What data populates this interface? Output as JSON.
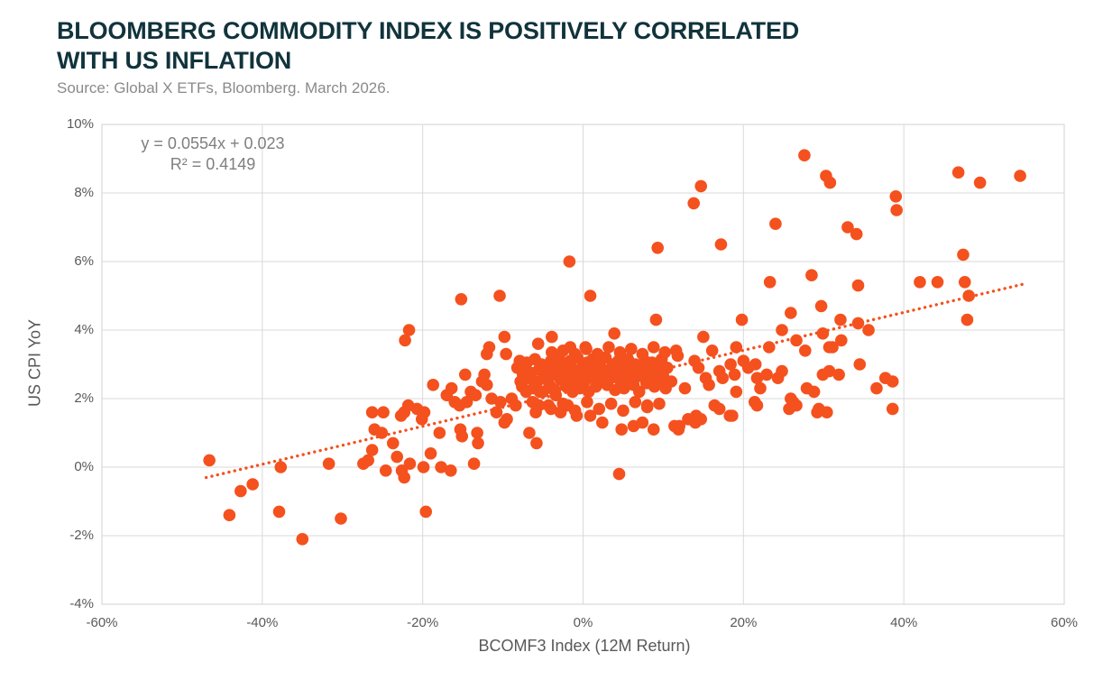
{
  "header": {
    "title_line1": "BLOOMBERG COMMODITY INDEX IS POSITIVELY CORRELATED",
    "title_line2": "WITH US INFLATION",
    "source": "Source: Global X ETFs, Bloomberg. March 2026."
  },
  "colors": {
    "title": "#11333C",
    "source_text": "#8a8a8a",
    "axis_text": "#595959",
    "gridline": "#D9D9D9",
    "marker": "#F4511E"
  },
  "chart_data": {
    "type": "scatter",
    "title": "Bloomberg Commodity Index is positively correlated with US inflation",
    "xlabel": "BCOMF3 Index (12M Return)",
    "ylabel": "US CPI YoY",
    "xlim": [
      -60,
      60
    ],
    "ylim": [
      -4,
      10
    ],
    "x_ticks": [
      -60,
      -40,
      -20,
      0,
      20,
      40,
      60
    ],
    "y_ticks": [
      -4,
      -2,
      0,
      2,
      4,
      6,
      8,
      10
    ],
    "tick_suffix": "%",
    "grid": true,
    "legend": "none",
    "annotation": {
      "line1": "y = 0.0554x + 0.023",
      "line2": "R² = 0.4149"
    },
    "trendline": {
      "slope": 0.0554,
      "intercept_pct": 2.3,
      "x_start": -47,
      "x_end": 55,
      "style": "dotted"
    },
    "points": [
      [
        -46.6,
        0.2
      ],
      [
        -44.1,
        -1.4
      ],
      [
        -42.7,
        -0.7
      ],
      [
        -41.2,
        -0.5
      ],
      [
        -37.9,
        -1.3
      ],
      [
        -37.7,
        0.0
      ],
      [
        -35.0,
        -2.1
      ],
      [
        -31.7,
        0.1
      ],
      [
        -30.2,
        -1.5
      ],
      [
        -27.4,
        0.1
      ],
      [
        -26.8,
        0.2
      ],
      [
        -26.3,
        1.6
      ],
      [
        -26.3,
        0.5
      ],
      [
        -26.0,
        1.1
      ],
      [
        -25.1,
        1.0
      ],
      [
        -24.9,
        1.6
      ],
      [
        -24.6,
        -0.1
      ],
      [
        -23.7,
        0.7
      ],
      [
        -23.2,
        0.3
      ],
      [
        -22.7,
        1.5
      ],
      [
        -22.3,
        1.6
      ],
      [
        -22.6,
        -0.1
      ],
      [
        -22.3,
        -0.3
      ],
      [
        -21.8,
        1.8
      ],
      [
        -21.6,
        0.1
      ],
      [
        -20.7,
        1.7
      ],
      [
        -20.1,
        1.4
      ],
      [
        -19.9,
        0.0
      ],
      [
        -19.8,
        1.6
      ],
      [
        -19.6,
        -1.3
      ],
      [
        -19.0,
        0.4
      ],
      [
        -18.7,
        2.4
      ],
      [
        -17.9,
        1.0
      ],
      [
        -17.7,
        0.0
      ],
      [
        -17.0,
        2.1
      ],
      [
        -16.5,
        -0.1
      ],
      [
        -16.4,
        2.3
      ],
      [
        -16.0,
        1.9
      ],
      [
        -15.4,
        1.8
      ],
      [
        -15.3,
        1.1
      ],
      [
        -15.1,
        0.9
      ],
      [
        -14.7,
        2.7
      ],
      [
        -14.5,
        1.9
      ],
      [
        -14.0,
        2.2
      ],
      [
        -13.6,
        0.1
      ],
      [
        -13.4,
        2.1
      ],
      [
        -13.2,
        1.0
      ],
      [
        -13.1,
        0.7
      ],
      [
        -12.6,
        2.5
      ],
      [
        -12.3,
        2.7
      ],
      [
        -12.0,
        2.4
      ],
      [
        -11.4,
        2.0
      ],
      [
        -10.8,
        1.6
      ],
      [
        -10.3,
        1.9
      ],
      [
        -9.8,
        1.3
      ],
      [
        -9.5,
        1.4
      ],
      [
        -8.9,
        2.0
      ],
      [
        -8.4,
        1.8
      ],
      [
        -7.8,
        2.5
      ],
      [
        -7.5,
        2.7
      ],
      [
        -7.1,
        2.2
      ],
      [
        -6.7,
        1.0
      ],
      [
        -6.3,
        1.9
      ],
      [
        -5.9,
        1.6
      ],
      [
        -5.8,
        0.7
      ],
      [
        -5.4,
        2.2
      ],
      [
        -4.8,
        2.6
      ],
      [
        -4.3,
        1.8
      ],
      [
        -3.9,
        2.3
      ],
      [
        -3.4,
        2.1
      ],
      [
        -2.8,
        1.6
      ],
      [
        -2.2,
        2.5
      ],
      [
        -1.9,
        1.8
      ],
      [
        -1.3,
        2.2
      ],
      [
        -0.8,
        1.5
      ],
      [
        -22.2,
        3.7
      ],
      [
        -21.7,
        4.0
      ],
      [
        -15.2,
        4.9
      ],
      [
        -10.4,
        5.0
      ],
      [
        -1.7,
        6.0
      ],
      [
        0.9,
        5.0
      ],
      [
        -12.0,
        3.3
      ],
      [
        -11.7,
        3.5
      ],
      [
        -9.8,
        3.8
      ],
      [
        -9.6,
        3.3
      ],
      [
        -5.6,
        3.6
      ],
      [
        -3.9,
        3.8
      ],
      [
        -1.6,
        3.5
      ],
      [
        0.3,
        3.5
      ],
      [
        3.9,
        3.9
      ],
      [
        4.5,
        -0.2
      ],
      [
        9.3,
        6.4
      ],
      [
        17.2,
        6.5
      ],
      [
        13.8,
        7.7
      ],
      [
        14.7,
        8.2
      ],
      [
        24.0,
        7.1
      ],
      [
        27.6,
        9.1
      ],
      [
        30.3,
        8.5
      ],
      [
        30.8,
        8.3
      ],
      [
        23.3,
        5.4
      ],
      [
        28.5,
        5.6
      ],
      [
        29.7,
        4.7
      ],
      [
        9.1,
        4.3
      ],
      [
        19.8,
        4.3
      ],
      [
        33.0,
        7.0
      ],
      [
        34.1,
        6.8
      ],
      [
        39.0,
        7.9
      ],
      [
        39.1,
        7.5
      ],
      [
        46.8,
        8.6
      ],
      [
        49.5,
        8.3
      ],
      [
        54.5,
        8.5
      ],
      [
        47.4,
        6.2
      ],
      [
        34.3,
        5.3
      ],
      [
        42.0,
        5.4
      ],
      [
        44.2,
        5.4
      ],
      [
        47.6,
        5.4
      ],
      [
        48.1,
        5.0
      ],
      [
        47.9,
        4.3
      ],
      [
        15.0,
        3.8
      ],
      [
        11.6,
        3.4
      ],
      [
        16.1,
        3.4
      ],
      [
        19.1,
        3.5
      ],
      [
        23.2,
        3.5
      ],
      [
        26.6,
        3.7
      ],
      [
        27.7,
        3.4
      ],
      [
        29.9,
        3.9
      ],
      [
        30.7,
        3.5
      ],
      [
        25.9,
        4.5
      ],
      [
        24.8,
        4.0
      ],
      [
        30.7,
        2.8
      ],
      [
        31.9,
        2.7
      ],
      [
        34.5,
        3.0
      ],
      [
        36.6,
        2.3
      ],
      [
        37.7,
        2.6
      ],
      [
        38.6,
        2.5
      ],
      [
        38.6,
        1.7
      ],
      [
        32.1,
        4.3
      ],
      [
        34.3,
        4.2
      ],
      [
        35.6,
        4.0
      ],
      [
        32.2,
        3.7
      ],
      [
        31.1,
        3.5
      ],
      [
        0.9,
        1.5
      ],
      [
        2.4,
        1.3
      ],
      [
        4.8,
        1.1
      ],
      [
        6.3,
        1.2
      ],
      [
        7.4,
        1.3
      ],
      [
        8.0,
        1.8
      ],
      [
        8.8,
        1.1
      ],
      [
        11.9,
        1.1
      ],
      [
        13.1,
        1.4
      ],
      [
        14.0,
        1.3
      ],
      [
        18.3,
        1.5
      ],
      [
        29.4,
        1.7
      ],
      [
        16.4,
        1.8
      ],
      [
        17.0,
        1.7
      ],
      [
        14.1,
        1.5
      ],
      [
        14.7,
        1.4
      ],
      [
        12.0,
        1.2
      ],
      [
        18.6,
        1.5
      ],
      [
        21.4,
        1.9
      ],
      [
        21.7,
        1.8
      ],
      [
        25.7,
        1.7
      ],
      [
        26.2,
        1.9
      ],
      [
        29.2,
        1.6
      ],
      [
        30.4,
        1.6
      ],
      [
        11.4,
        1.2
      ],
      [
        26.6,
        1.8
      ],
      [
        25.9,
        2.0
      ],
      [
        11.0,
        2.5
      ],
      [
        12.7,
        2.3
      ],
      [
        13.9,
        3.1
      ],
      [
        14.4,
        2.9
      ],
      [
        15.3,
        2.6
      ],
      [
        15.7,
        2.4
      ],
      [
        17.0,
        2.8
      ],
      [
        17.4,
        2.6
      ],
      [
        18.4,
        3.0
      ],
      [
        18.9,
        2.7
      ],
      [
        19.1,
        2.2
      ],
      [
        20.0,
        3.1
      ],
      [
        20.6,
        2.9
      ],
      [
        21.5,
        3.0
      ],
      [
        21.7,
        2.6
      ],
      [
        22.1,
        2.3
      ],
      [
        22.9,
        2.7
      ],
      [
        24.3,
        2.6
      ],
      [
        24.8,
        2.8
      ],
      [
        27.9,
        2.3
      ],
      [
        28.8,
        2.2
      ],
      [
        29.9,
        2.7
      ],
      [
        -8.2,
        2.9
      ],
      [
        -7.9,
        3.1
      ],
      [
        -7.6,
        2.35
      ],
      [
        -7.3,
        2.9
      ],
      [
        -7.0,
        3.05
      ],
      [
        -6.8,
        2.6
      ],
      [
        -6.5,
        2.75
      ],
      [
        -6.2,
        2.3
      ],
      [
        -6.0,
        3.15
      ],
      [
        -5.7,
        2.5
      ],
      [
        -5.5,
        2.85
      ],
      [
        -5.2,
        3.0
      ],
      [
        -5.0,
        2.2
      ],
      [
        -4.7,
        2.65
      ],
      [
        -4.5,
        2.95
      ],
      [
        -4.2,
        2.4
      ],
      [
        -4.0,
        3.1
      ],
      [
        -3.8,
        2.7
      ],
      [
        -3.5,
        2.25
      ],
      [
        -3.3,
        2.9
      ],
      [
        -3.0,
        3.2
      ],
      [
        -2.8,
        2.55
      ],
      [
        -2.6,
        2.8
      ],
      [
        -2.3,
        3.0
      ],
      [
        -2.1,
        2.35
      ],
      [
        -1.8,
        2.7
      ],
      [
        -1.6,
        3.1
      ],
      [
        -1.4,
        2.45
      ],
      [
        -1.1,
        2.85
      ],
      [
        -0.9,
        2.6
      ],
      [
        -0.7,
        3.2
      ],
      [
        -0.4,
        2.3
      ],
      [
        -0.2,
        2.75
      ],
      [
        0.0,
        2.95
      ],
      [
        0.2,
        2.5
      ],
      [
        0.5,
        3.05
      ],
      [
        0.7,
        2.2
      ],
      [
        0.9,
        2.8
      ],
      [
        1.2,
        3.15
      ],
      [
        1.4,
        2.6
      ],
      [
        1.6,
        2.35
      ],
      [
        1.9,
        2.9
      ],
      [
        2.1,
        3.05
      ],
      [
        2.3,
        2.5
      ],
      [
        2.6,
        2.7
      ],
      [
        2.8,
        3.2
      ],
      [
        3.0,
        2.4
      ],
      [
        3.3,
        2.85
      ],
      [
        3.5,
        2.6
      ],
      [
        3.7,
        3.0
      ],
      [
        4.0,
        2.25
      ],
      [
        4.2,
        2.75
      ],
      [
        4.4,
        3.1
      ],
      [
        4.7,
        2.5
      ],
      [
        4.9,
        2.9
      ],
      [
        5.1,
        2.3
      ],
      [
        5.4,
        2.7
      ],
      [
        5.6,
        3.15
      ],
      [
        5.8,
        2.55
      ],
      [
        6.1,
        2.85
      ],
      [
        6.3,
        2.4
      ],
      [
        6.5,
        3.0
      ],
      [
        6.8,
        2.65
      ],
      [
        7.0,
        2.2
      ],
      [
        7.2,
        2.95
      ],
      [
        7.5,
        2.7
      ],
      [
        7.7,
        3.1
      ],
      [
        7.9,
        2.45
      ],
      [
        8.2,
        2.8
      ],
      [
        8.4,
        2.55
      ],
      [
        8.6,
        3.05
      ],
      [
        8.9,
        2.35
      ],
      [
        9.1,
        2.75
      ],
      [
        9.3,
        2.95
      ],
      [
        9.6,
        2.5
      ],
      [
        9.8,
        3.15
      ],
      [
        10.0,
        2.65
      ],
      [
        10.3,
        2.3
      ],
      [
        10.5,
        2.9
      ],
      [
        -3.9,
        3.35
      ],
      [
        -2.5,
        3.4
      ],
      [
        -1.0,
        3.3
      ],
      [
        0.4,
        3.45
      ],
      [
        1.8,
        3.3
      ],
      [
        3.2,
        3.5
      ],
      [
        4.6,
        3.35
      ],
      [
        6.0,
        3.45
      ],
      [
        7.4,
        3.3
      ],
      [
        8.8,
        3.5
      ],
      [
        10.2,
        3.35
      ],
      [
        11.8,
        3.25
      ],
      [
        -5.5,
        1.8
      ],
      [
        -4.0,
        1.7
      ],
      [
        -2.5,
        1.85
      ],
      [
        -1.0,
        1.65
      ],
      [
        0.5,
        1.9
      ],
      [
        2.0,
        1.7
      ],
      [
        3.5,
        1.85
      ],
      [
        5.0,
        1.65
      ],
      [
        6.5,
        1.9
      ],
      [
        8.0,
        1.75
      ],
      [
        9.5,
        1.85
      ]
    ]
  }
}
